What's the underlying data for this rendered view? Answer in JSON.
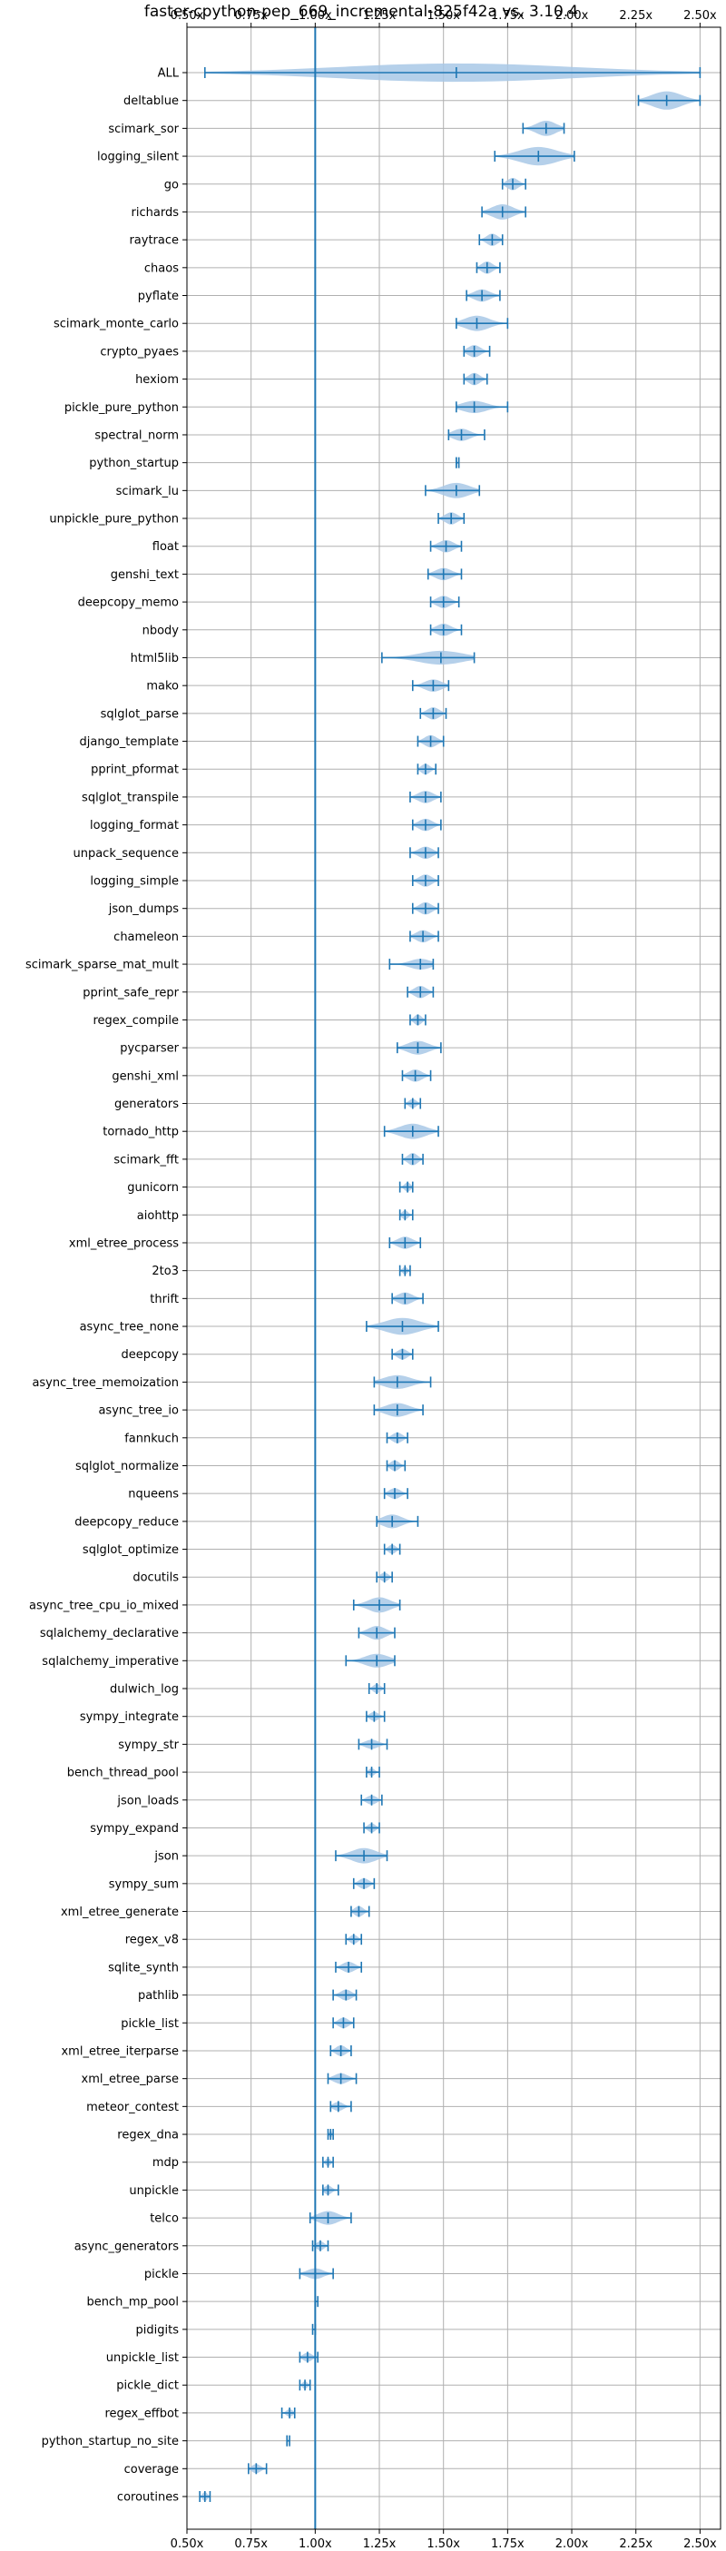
{
  "chart_data": {
    "type": "violin",
    "title": "faster-cpython-pep_669_incremental-825f42a vs. 3.10.4",
    "xlabel": "",
    "ylabel": "",
    "xlim": [
      0.5,
      2.58
    ],
    "xticks": [
      "0.50x",
      "0.75x",
      "1.00x",
      "1.25x",
      "1.50x",
      "1.75x",
      "2.00x",
      "2.25x",
      "2.50x"
    ],
    "xtick_values": [
      0.5,
      0.75,
      1.0,
      1.25,
      1.5,
      1.75,
      2.0,
      2.25,
      2.5
    ],
    "reference_line": 1.0,
    "grid": true,
    "colors": {
      "violin": "#1f77b4",
      "violin_fill": "#a8c8e6",
      "axis": "#000000",
      "grid": "#b0b0b0"
    },
    "series": [
      {
        "label": "ALL",
        "min": 0.57,
        "max": 2.5,
        "median": 1.55,
        "width": 0.6
      },
      {
        "label": "deltablue",
        "min": 2.26,
        "max": 2.5,
        "median": 2.37,
        "width": 0.6
      },
      {
        "label": "scimark_sor",
        "min": 1.81,
        "max": 1.97,
        "median": 1.9,
        "width": 0.5
      },
      {
        "label": "logging_silent",
        "min": 1.7,
        "max": 2.01,
        "median": 1.87,
        "width": 0.6
      },
      {
        "label": "go",
        "min": 1.73,
        "max": 1.82,
        "median": 1.77,
        "width": 0.4
      },
      {
        "label": "richards",
        "min": 1.65,
        "max": 1.82,
        "median": 1.73,
        "width": 0.5
      },
      {
        "label": "raytrace",
        "min": 1.64,
        "max": 1.73,
        "median": 1.69,
        "width": 0.4
      },
      {
        "label": "chaos",
        "min": 1.63,
        "max": 1.72,
        "median": 1.67,
        "width": 0.4
      },
      {
        "label": "pyflate",
        "min": 1.59,
        "max": 1.72,
        "median": 1.65,
        "width": 0.4
      },
      {
        "label": "scimark_monte_carlo",
        "min": 1.55,
        "max": 1.75,
        "median": 1.63,
        "width": 0.5
      },
      {
        "label": "crypto_pyaes",
        "min": 1.58,
        "max": 1.68,
        "median": 1.62,
        "width": 0.4
      },
      {
        "label": "hexiom",
        "min": 1.58,
        "max": 1.67,
        "median": 1.62,
        "width": 0.4
      },
      {
        "label": "pickle_pure_python",
        "min": 1.55,
        "max": 1.75,
        "median": 1.62,
        "width": 0.4
      },
      {
        "label": "spectral_norm",
        "min": 1.52,
        "max": 1.66,
        "median": 1.57,
        "width": 0.4
      },
      {
        "label": "python_startup",
        "min": 1.55,
        "max": 1.56,
        "median": 1.55,
        "width": 0.3
      },
      {
        "label": "scimark_lu",
        "min": 1.43,
        "max": 1.64,
        "median": 1.55,
        "width": 0.5
      },
      {
        "label": "unpickle_pure_python",
        "min": 1.48,
        "max": 1.58,
        "median": 1.53,
        "width": 0.4
      },
      {
        "label": "float",
        "min": 1.45,
        "max": 1.57,
        "median": 1.51,
        "width": 0.4
      },
      {
        "label": "genshi_text",
        "min": 1.44,
        "max": 1.57,
        "median": 1.5,
        "width": 0.4
      },
      {
        "label": "deepcopy_memo",
        "min": 1.45,
        "max": 1.56,
        "median": 1.5,
        "width": 0.4
      },
      {
        "label": "nbody",
        "min": 1.45,
        "max": 1.57,
        "median": 1.5,
        "width": 0.4
      },
      {
        "label": "html5lib",
        "min": 1.26,
        "max": 1.62,
        "median": 1.49,
        "width": 0.45
      },
      {
        "label": "mako",
        "min": 1.38,
        "max": 1.52,
        "median": 1.46,
        "width": 0.4
      },
      {
        "label": "sqlglot_parse",
        "min": 1.41,
        "max": 1.51,
        "median": 1.46,
        "width": 0.4
      },
      {
        "label": "django_template",
        "min": 1.4,
        "max": 1.5,
        "median": 1.45,
        "width": 0.4
      },
      {
        "label": "pprint_pformat",
        "min": 1.4,
        "max": 1.47,
        "median": 1.43,
        "width": 0.35
      },
      {
        "label": "sqlglot_transpile",
        "min": 1.37,
        "max": 1.49,
        "median": 1.43,
        "width": 0.4
      },
      {
        "label": "logging_format",
        "min": 1.38,
        "max": 1.49,
        "median": 1.43,
        "width": 0.4
      },
      {
        "label": "unpack_sequence",
        "min": 1.37,
        "max": 1.48,
        "median": 1.43,
        "width": 0.4
      },
      {
        "label": "logging_simple",
        "min": 1.38,
        "max": 1.48,
        "median": 1.43,
        "width": 0.4
      },
      {
        "label": "json_dumps",
        "min": 1.38,
        "max": 1.48,
        "median": 1.43,
        "width": 0.4
      },
      {
        "label": "chameleon",
        "min": 1.37,
        "max": 1.48,
        "median": 1.42,
        "width": 0.4
      },
      {
        "label": "scimark_sparse_mat_mult",
        "min": 1.29,
        "max": 1.46,
        "median": 1.41,
        "width": 0.35
      },
      {
        "label": "pprint_safe_repr",
        "min": 1.36,
        "max": 1.46,
        "median": 1.41,
        "width": 0.4
      },
      {
        "label": "regex_compile",
        "min": 1.37,
        "max": 1.43,
        "median": 1.4,
        "width": 0.35
      },
      {
        "label": "pycparser",
        "min": 1.32,
        "max": 1.49,
        "median": 1.4,
        "width": 0.45
      },
      {
        "label": "genshi_xml",
        "min": 1.34,
        "max": 1.45,
        "median": 1.39,
        "width": 0.4
      },
      {
        "label": "generators",
        "min": 1.35,
        "max": 1.41,
        "median": 1.38,
        "width": 0.3
      },
      {
        "label": "tornado_http",
        "min": 1.27,
        "max": 1.48,
        "median": 1.38,
        "width": 0.5
      },
      {
        "label": "scimark_fft",
        "min": 1.34,
        "max": 1.42,
        "median": 1.38,
        "width": 0.4
      },
      {
        "label": "gunicorn",
        "min": 1.33,
        "max": 1.38,
        "median": 1.36,
        "width": 0.3
      },
      {
        "label": "aiohttp",
        "min": 1.33,
        "max": 1.38,
        "median": 1.35,
        "width": 0.3
      },
      {
        "label": "xml_etree_process",
        "min": 1.29,
        "max": 1.41,
        "median": 1.35,
        "width": 0.4
      },
      {
        "label": "2to3",
        "min": 1.33,
        "max": 1.37,
        "median": 1.35,
        "width": 0.25
      },
      {
        "label": "thrift",
        "min": 1.3,
        "max": 1.42,
        "median": 1.35,
        "width": 0.4
      },
      {
        "label": "async_tree_none",
        "min": 1.2,
        "max": 1.48,
        "median": 1.34,
        "width": 0.55
      },
      {
        "label": "deepcopy",
        "min": 1.3,
        "max": 1.38,
        "median": 1.34,
        "width": 0.35
      },
      {
        "label": "async_tree_memoization",
        "min": 1.23,
        "max": 1.45,
        "median": 1.32,
        "width": 0.45
      },
      {
        "label": "async_tree_io",
        "min": 1.23,
        "max": 1.42,
        "median": 1.32,
        "width": 0.45
      },
      {
        "label": "fannkuch",
        "min": 1.28,
        "max": 1.36,
        "median": 1.32,
        "width": 0.35
      },
      {
        "label": "sqlglot_normalize",
        "min": 1.28,
        "max": 1.35,
        "median": 1.31,
        "width": 0.35
      },
      {
        "label": "nqueens",
        "min": 1.27,
        "max": 1.36,
        "median": 1.31,
        "width": 0.35
      },
      {
        "label": "deepcopy_reduce",
        "min": 1.24,
        "max": 1.4,
        "median": 1.3,
        "width": 0.45
      },
      {
        "label": "sqlglot_optimize",
        "min": 1.27,
        "max": 1.33,
        "median": 1.3,
        "width": 0.3
      },
      {
        "label": "docutils",
        "min": 1.24,
        "max": 1.3,
        "median": 1.27,
        "width": 0.3
      },
      {
        "label": "async_tree_cpu_io_mixed",
        "min": 1.15,
        "max": 1.33,
        "median": 1.25,
        "width": 0.5
      },
      {
        "label": "sqlalchemy_declarative",
        "min": 1.17,
        "max": 1.31,
        "median": 1.24,
        "width": 0.45
      },
      {
        "label": "sqlalchemy_imperative",
        "min": 1.12,
        "max": 1.31,
        "median": 1.24,
        "width": 0.45
      },
      {
        "label": "dulwich_log",
        "min": 1.21,
        "max": 1.27,
        "median": 1.24,
        "width": 0.3
      },
      {
        "label": "sympy_integrate",
        "min": 1.2,
        "max": 1.27,
        "median": 1.23,
        "width": 0.3
      },
      {
        "label": "sympy_str",
        "min": 1.17,
        "max": 1.28,
        "median": 1.22,
        "width": 0.3
      },
      {
        "label": "bench_thread_pool",
        "min": 1.2,
        "max": 1.25,
        "median": 1.22,
        "width": 0.25
      },
      {
        "label": "json_loads",
        "min": 1.18,
        "max": 1.26,
        "median": 1.22,
        "width": 0.3
      },
      {
        "label": "sympy_expand",
        "min": 1.19,
        "max": 1.25,
        "median": 1.22,
        "width": 0.3
      },
      {
        "label": "json",
        "min": 1.08,
        "max": 1.28,
        "median": 1.19,
        "width": 0.5
      },
      {
        "label": "sympy_sum",
        "min": 1.15,
        "max": 1.23,
        "median": 1.19,
        "width": 0.35
      },
      {
        "label": "xml_etree_generate",
        "min": 1.14,
        "max": 1.21,
        "median": 1.17,
        "width": 0.35
      },
      {
        "label": "regex_v8",
        "min": 1.12,
        "max": 1.18,
        "median": 1.15,
        "width": 0.3
      },
      {
        "label": "sqlite_synth",
        "min": 1.08,
        "max": 1.18,
        "median": 1.13,
        "width": 0.35
      },
      {
        "label": "pathlib",
        "min": 1.07,
        "max": 1.16,
        "median": 1.12,
        "width": 0.35
      },
      {
        "label": "pickle_list",
        "min": 1.07,
        "max": 1.15,
        "median": 1.11,
        "width": 0.35
      },
      {
        "label": "xml_etree_iterparse",
        "min": 1.06,
        "max": 1.14,
        "median": 1.1,
        "width": 0.35
      },
      {
        "label": "xml_etree_parse",
        "min": 1.05,
        "max": 1.16,
        "median": 1.1,
        "width": 0.35
      },
      {
        "label": "meteor_contest",
        "min": 1.06,
        "max": 1.14,
        "median": 1.09,
        "width": 0.3
      },
      {
        "label": "regex_dna",
        "min": 1.05,
        "max": 1.07,
        "median": 1.06,
        "width": 0.25
      },
      {
        "label": "mdp",
        "min": 1.03,
        "max": 1.07,
        "median": 1.05,
        "width": 0.25
      },
      {
        "label": "unpickle",
        "min": 1.03,
        "max": 1.09,
        "median": 1.05,
        "width": 0.3
      },
      {
        "label": "telco",
        "min": 0.98,
        "max": 1.14,
        "median": 1.05,
        "width": 0.45
      },
      {
        "label": "async_generators",
        "min": 0.99,
        "max": 1.05,
        "median": 1.02,
        "width": 0.3
      },
      {
        "label": "pickle",
        "min": 0.94,
        "max": 1.07,
        "median": 1.0,
        "width": 0.35
      },
      {
        "label": "bench_mp_pool",
        "min": 1.0,
        "max": 1.01,
        "median": 1.0,
        "width": 0.2
      },
      {
        "label": "pidigits",
        "min": 0.99,
        "max": 1.0,
        "median": 1.0,
        "width": 0.15
      },
      {
        "label": "unpickle_list",
        "min": 0.94,
        "max": 1.01,
        "median": 0.97,
        "width": 0.3
      },
      {
        "label": "pickle_dict",
        "min": 0.94,
        "max": 0.98,
        "median": 0.96,
        "width": 0.25
      },
      {
        "label": "regex_effbot",
        "min": 0.87,
        "max": 0.92,
        "median": 0.9,
        "width": 0.25
      },
      {
        "label": "python_startup_no_site",
        "min": 0.89,
        "max": 0.9,
        "median": 0.89,
        "width": 0.15
      },
      {
        "label": "coverage",
        "min": 0.74,
        "max": 0.81,
        "median": 0.77,
        "width": 0.3
      },
      {
        "label": "coroutines",
        "min": 0.55,
        "max": 0.59,
        "median": 0.57,
        "width": 0.3
      }
    ]
  }
}
